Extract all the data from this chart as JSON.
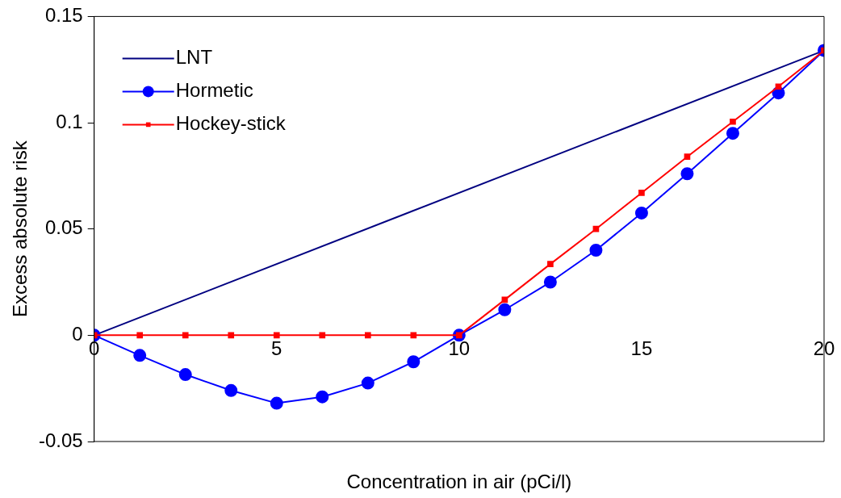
{
  "chart_data": {
    "type": "line",
    "xlabel": "Concentration in air (pCi/l)",
    "ylabel": "Excess absolute risk",
    "xlim": [
      0,
      20
    ],
    "xticks": [
      0,
      5,
      10,
      15,
      20
    ],
    "ylim": [
      -0.05,
      0.15
    ],
    "yticks": [
      -0.05,
      0,
      0.05,
      0.1,
      0.15
    ],
    "grid": false,
    "legend": "top left",
    "series": [
      {
        "name": "LNT",
        "color": "#000080",
        "marker": "none",
        "x": [
          0,
          20
        ],
        "values": [
          0,
          0.134
        ]
      },
      {
        "name": "Hormetic",
        "color": "#0000ff",
        "marker": "circle",
        "x": [
          0,
          1.25,
          2.5,
          3.75,
          5,
          6.25,
          7.5,
          8.75,
          10,
          11.25,
          12.5,
          13.75,
          15,
          16.25,
          17.5,
          18.75,
          20
        ],
        "values": [
          0,
          -0.0095,
          -0.0185,
          -0.026,
          -0.032,
          -0.029,
          -0.0225,
          -0.0125,
          0,
          0.012,
          0.025,
          0.04,
          0.0575,
          0.076,
          0.095,
          0.114,
          0.134
        ]
      },
      {
        "name": "Hockey-stick",
        "color": "#ff0000",
        "marker": "square",
        "x": [
          0,
          1.25,
          2.5,
          3.75,
          5,
          6.25,
          7.5,
          8.75,
          10,
          11.25,
          12.5,
          13.75,
          15,
          16.25,
          17.5,
          18.75,
          20
        ],
        "values": [
          0,
          0,
          0,
          0,
          0,
          0,
          0,
          0,
          0,
          0.0167,
          0.0335,
          0.05,
          0.067,
          0.084,
          0.1005,
          0.117,
          0.134
        ]
      }
    ]
  }
}
